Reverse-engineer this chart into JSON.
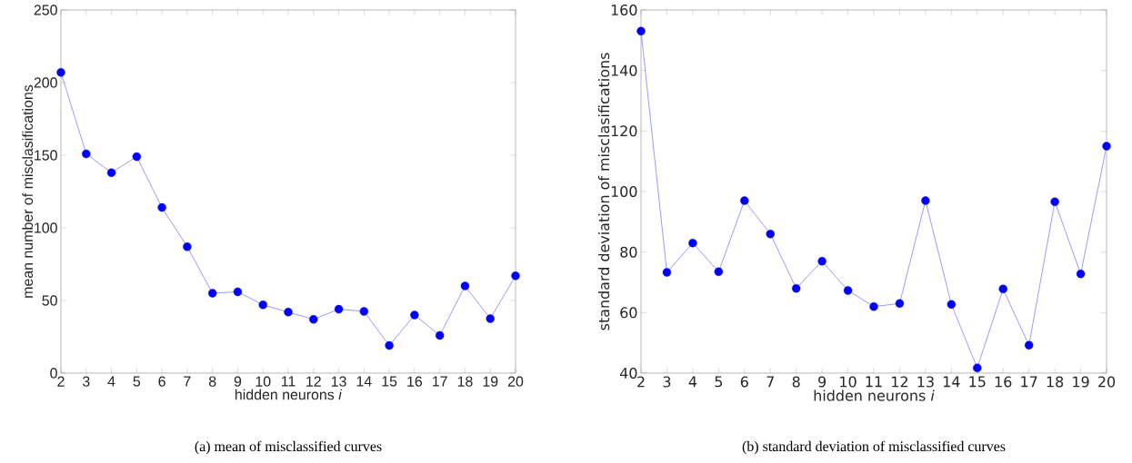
{
  "chart_data": [
    {
      "type": "line",
      "xlabel": "hidden neurons  *i*",
      "ylabel": "mean number of misclasifications",
      "annotations": [
        "(a) mean of misclassified curves"
      ],
      "color": "#0000ff",
      "marker": "circle",
      "line_style": "solid",
      "x": [
        2,
        3,
        4,
        5,
        6,
        7,
        8,
        9,
        10,
        11,
        12,
        13,
        14,
        15,
        16,
        17,
        18,
        19,
        20
      ],
      "values": [
        207,
        151,
        138,
        149,
        114,
        87,
        55,
        56,
        47,
        42,
        37,
        44,
        42.5,
        19,
        40,
        26,
        60,
        37.5,
        67
      ],
      "xlim": [
        2,
        20
      ],
      "ylim": [
        0,
        250
      ],
      "xticks": [
        2,
        3,
        4,
        5,
        6,
        7,
        8,
        9,
        10,
        11,
        12,
        13,
        14,
        15,
        16,
        17,
        18,
        19,
        20
      ],
      "yticks": [
        0,
        50,
        100,
        150,
        200,
        250
      ]
    },
    {
      "type": "line",
      "xlabel": "hidden neurons  *i*",
      "ylabel": "standard deviation of misclasifications",
      "annotations": [
        "(b) standard deviation of misclassified curves"
      ],
      "color": "#0000ff",
      "marker": "circle",
      "line_style": "solid",
      "x": [
        2,
        3,
        4,
        5,
        6,
        7,
        8,
        9,
        10,
        11,
        12,
        13,
        14,
        15,
        16,
        17,
        18,
        19,
        20
      ],
      "values": [
        153,
        73.3,
        83,
        73.5,
        97,
        86,
        68,
        77,
        67.3,
        62,
        63,
        97,
        62.7,
        41.7,
        67.8,
        49.2,
        96.6,
        72.8,
        115
      ],
      "xlim": [
        2,
        20
      ],
      "ylim": [
        40,
        160
      ],
      "xticks": [
        2,
        3,
        4,
        5,
        6,
        7,
        8,
        9,
        10,
        11,
        12,
        13,
        14,
        15,
        16,
        17,
        18,
        19,
        20
      ],
      "yticks": [
        40,
        60,
        80,
        100,
        120,
        140,
        160
      ]
    }
  ]
}
